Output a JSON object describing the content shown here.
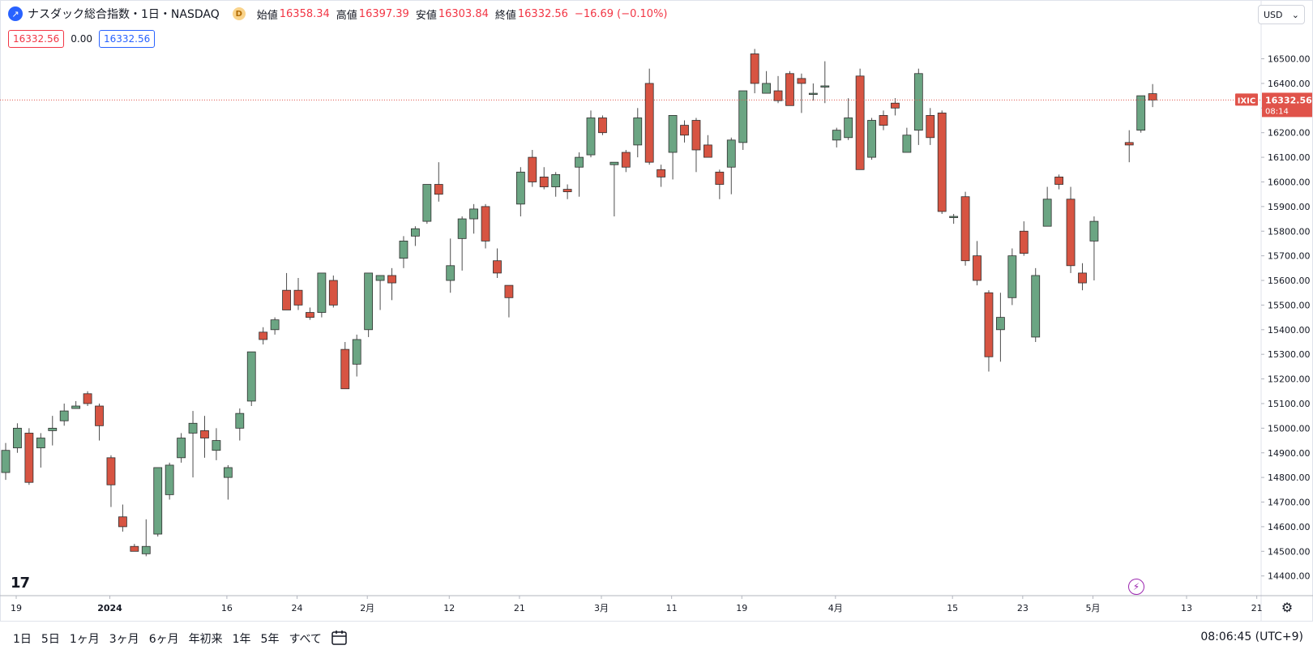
{
  "legend": {
    "symbol_icon": "trend-icon",
    "title": "ナスダック総合指数・1日・NASDAQ",
    "badge": "D",
    "open_label": "始値",
    "open": "16358.34",
    "high_label": "高値",
    "high": "16397.39",
    "low_label": "安値",
    "low": "16303.84",
    "close_label": "終値",
    "close": "16332.56",
    "change": "−16.69 (−0.10%)",
    "sell": "16332.56",
    "spread": "0.00",
    "buy": "16332.56"
  },
  "currency": "USD",
  "price_tag": {
    "symbol": "IXIC",
    "price": "16332.56",
    "countdown": "08:14"
  },
  "ranges": [
    "1日",
    "5日",
    "1ヶ月",
    "3ヶ月",
    "6ヶ月",
    "年初来",
    "1年",
    "5年",
    "すべて"
  ],
  "clock": "08:06:45 (UTC+9)",
  "logo_text": "17",
  "colors": {
    "up": "#6ba583",
    "down": "#d75442",
    "wick": "#4d4d4d",
    "last": "#e0534a"
  },
  "chart_data": {
    "type": "candlestick",
    "title": "ナスダック総合指数・1日・NASDAQ",
    "ylim": [
      14320,
      16640
    ],
    "y_ticks": [
      14400,
      14500,
      14600,
      14700,
      14800,
      14900,
      15000,
      15100,
      15200,
      15300,
      15400,
      15500,
      15600,
      15700,
      15800,
      15900,
      16000,
      16100,
      16200,
      16300,
      16400,
      16500
    ],
    "x_ticks": [
      {
        "label": "19",
        "i": 0
      },
      {
        "label": "2024",
        "i": 8
      },
      {
        "label": "16",
        "i": 18
      },
      {
        "label": "24",
        "i": 24
      },
      {
        "label": "2月",
        "i": 30
      },
      {
        "label": "12",
        "i": 37
      },
      {
        "label": "21",
        "i": 43
      },
      {
        "label": "3月",
        "i": 50
      },
      {
        "label": "11",
        "i": 56
      },
      {
        "label": "19",
        "i": 62
      },
      {
        "label": "4月",
        "i": 70
      },
      {
        "label": "15",
        "i": 80
      },
      {
        "label": "23",
        "i": 86
      },
      {
        "label": "5月",
        "i": 92
      },
      {
        "label": "13",
        "i": 100
      },
      {
        "label": "21",
        "i": 106
      }
    ],
    "last_price": 16332.56,
    "candles": [
      [
        14820,
        14910,
        14940,
        14790
      ],
      [
        14920,
        15000,
        15020,
        14900
      ],
      [
        14980,
        14780,
        15000,
        14770
      ],
      [
        14920,
        14960,
        14980,
        14840
      ],
      [
        14990,
        15000,
        15050,
        14930
      ],
      [
        15030,
        15070,
        15100,
        15010
      ],
      [
        15080,
        15090,
        15110,
        15080
      ],
      [
        15140,
        15100,
        15150,
        15090
      ],
      [
        15090,
        15010,
        15100,
        14950
      ],
      [
        14880,
        14770,
        14890,
        14680
      ],
      [
        14640,
        14600,
        14690,
        14580
      ],
      [
        14520,
        14500,
        14530,
        14500
      ],
      [
        14490,
        14520,
        14630,
        14480
      ],
      [
        14570,
        14840,
        14840,
        14560
      ],
      [
        14730,
        14850,
        14860,
        14710
      ],
      [
        14880,
        14960,
        14980,
        14860
      ],
      [
        14980,
        15020,
        15070,
        14800
      ],
      [
        14990,
        14960,
        15050,
        14880
      ],
      [
        14910,
        14950,
        15000,
        14870
      ],
      [
        14800,
        14840,
        14850,
        14710
      ],
      [
        15000,
        15060,
        15080,
        14950
      ],
      [
        15110,
        15310,
        15310,
        15090
      ],
      [
        15390,
        15360,
        15410,
        15340
      ],
      [
        15400,
        15440,
        15450,
        15380
      ],
      [
        15560,
        15480,
        15630,
        15480
      ],
      [
        15560,
        15500,
        15610,
        15480
      ],
      [
        15470,
        15450,
        15490,
        15440
      ],
      [
        15470,
        15630,
        15630,
        15450
      ],
      [
        15600,
        15500,
        15620,
        15490
      ],
      [
        15320,
        15160,
        15350,
        15160
      ],
      [
        15260,
        15360,
        15380,
        15210
      ],
      [
        15400,
        15630,
        15630,
        15370
      ],
      [
        15600,
        15620,
        15620,
        15480
      ],
      [
        15620,
        15590,
        15650,
        15520
      ],
      [
        15690,
        15760,
        15780,
        15650
      ],
      [
        15780,
        15810,
        15820,
        15740
      ],
      [
        15840,
        15990,
        15990,
        15830
      ],
      [
        15990,
        15950,
        16080,
        15920
      ],
      [
        15600,
        15660,
        15770,
        15550
      ],
      [
        15770,
        15850,
        15860,
        15640
      ],
      [
        15850,
        15890,
        15910,
        15790
      ],
      [
        15900,
        15760,
        15910,
        15730
      ],
      [
        15680,
        15630,
        15730,
        15610
      ],
      [
        15580,
        15530,
        15580,
        15450
      ],
      [
        15910,
        16040,
        16060,
        15860
      ],
      [
        16100,
        16000,
        16130,
        15980
      ],
      [
        16020,
        15980,
        16060,
        15970
      ],
      [
        15980,
        16030,
        16040,
        15940
      ],
      [
        15970,
        15960,
        15990,
        15930
      ],
      [
        16060,
        16100,
        16120,
        15940
      ],
      [
        16110,
        16260,
        16290,
        16100
      ],
      [
        16260,
        16200,
        16270,
        16190
      ],
      [
        16070,
        16080,
        16080,
        15860
      ],
      [
        16120,
        16060,
        16130,
        16040
      ],
      [
        16150,
        16260,
        16300,
        16100
      ],
      [
        16400,
        16080,
        16460,
        16070
      ],
      [
        16050,
        16020,
        16070,
        15980
      ],
      [
        16120,
        16270,
        16270,
        16010
      ],
      [
        16230,
        16190,
        16250,
        16160
      ],
      [
        16250,
        16130,
        16260,
        16040
      ],
      [
        16150,
        16100,
        16190,
        16100
      ],
      [
        16040,
        15990,
        16050,
        15930
      ],
      [
        16060,
        16170,
        16180,
        15950
      ],
      [
        16160,
        16370,
        16370,
        16130
      ],
      [
        16520,
        16400,
        16540,
        16360
      ],
      [
        16360,
        16400,
        16450,
        16360
      ],
      [
        16370,
        16330,
        16430,
        16320
      ],
      [
        16440,
        16310,
        16450,
        16310
      ],
      [
        16420,
        16400,
        16440,
        16280
      ],
      [
        16360,
        16360,
        16400,
        16330
      ],
      [
        16390,
        16390,
        16490,
        16320
      ],
      [
        16170,
        16210,
        16220,
        16140
      ],
      [
        16180,
        16260,
        16340,
        16170
      ],
      [
        16430,
        16050,
        16460,
        16050
      ],
      [
        16100,
        16250,
        16260,
        16090
      ],
      [
        16270,
        16230,
        16290,
        16210
      ],
      [
        16320,
        16300,
        16340,
        16270
      ],
      [
        16120,
        16190,
        16220,
        16120
      ],
      [
        16210,
        16440,
        16460,
        16150
      ],
      [
        16270,
        16180,
        16300,
        16150
      ],
      [
        16280,
        15880,
        16290,
        15870
      ],
      [
        15860,
        15860,
        15870,
        15830
      ],
      [
        15940,
        15680,
        15960,
        15660
      ],
      [
        15700,
        15600,
        15760,
        15580
      ],
      [
        15550,
        15290,
        15560,
        15230
      ],
      [
        15400,
        15450,
        15550,
        15270
      ],
      [
        15530,
        15700,
        15730,
        15500
      ],
      [
        15800,
        15710,
        15840,
        15700
      ],
      [
        15370,
        15620,
        15650,
        15350
      ],
      [
        15820,
        15930,
        15980,
        15820
      ],
      [
        16020,
        15990,
        16030,
        15970
      ],
      [
        15930,
        15660,
        15980,
        15630
      ],
      [
        15630,
        15590,
        15670,
        15560
      ],
      [
        15760,
        15840,
        15860,
        15600
      ],
      [
        null,
        null,
        null,
        null
      ],
      [
        null,
        null,
        null,
        null
      ],
      [
        16160,
        16150,
        16210,
        16080
      ],
      [
        16210,
        16350,
        16350,
        16200
      ],
      [
        16358.34,
        16332.56,
        16397.39,
        16303.84
      ]
    ]
  }
}
